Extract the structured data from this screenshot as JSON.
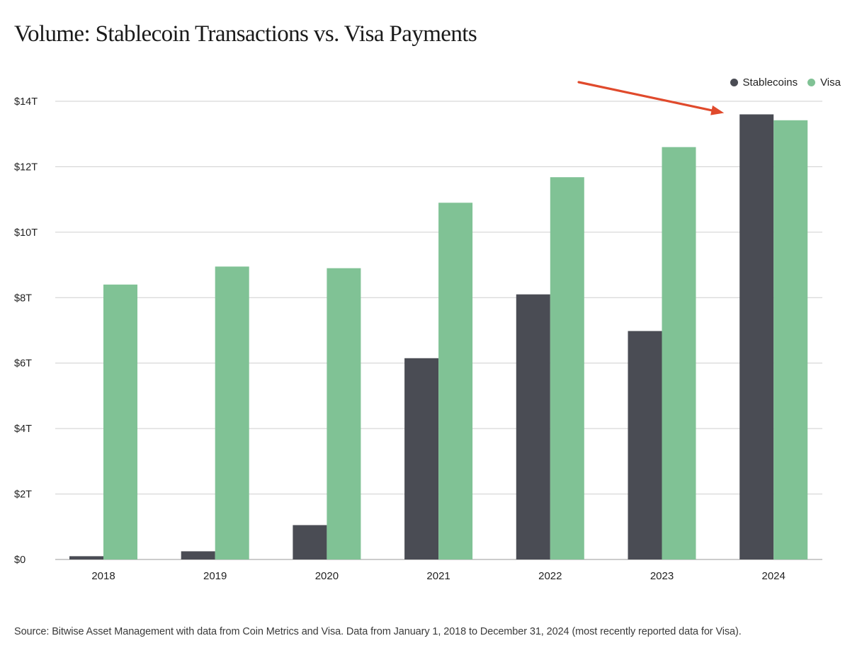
{
  "chart_data": {
    "type": "bar",
    "title": "Volume: Stablecoin Transactions vs. Visa Payments",
    "categories": [
      "2018",
      "2019",
      "2020",
      "2021",
      "2022",
      "2023",
      "2024"
    ],
    "series": [
      {
        "name": "Stablecoins",
        "color": "#4a4c54",
        "values": [
          0.1,
          0.25,
          1.05,
          6.15,
          8.1,
          6.98,
          13.6
        ]
      },
      {
        "name": "Visa",
        "color": "#80c295",
        "values": [
          8.4,
          8.95,
          8.9,
          10.9,
          11.68,
          12.6,
          13.42
        ]
      }
    ],
    "ylim": [
      0,
      14
    ],
    "yticks": [
      0,
      2,
      4,
      6,
      8,
      10,
      12,
      14
    ],
    "ytick_labels": [
      "$0",
      "$2T",
      "$4T",
      "$6T",
      "$8T",
      "$10T",
      "$12T",
      "$14T"
    ],
    "xlabel": "",
    "ylabel": "",
    "grid": true,
    "legend_position": "top-right",
    "annotation": {
      "type": "arrow",
      "color": "#e04a2c",
      "target_category": "2024",
      "target_series": "Stablecoins"
    },
    "source": "Source: Bitwise Asset Management with data from Coin Metrics and Visa. Data from January 1, 2018 to December 31, 2024 (most recently reported data for Visa)."
  }
}
